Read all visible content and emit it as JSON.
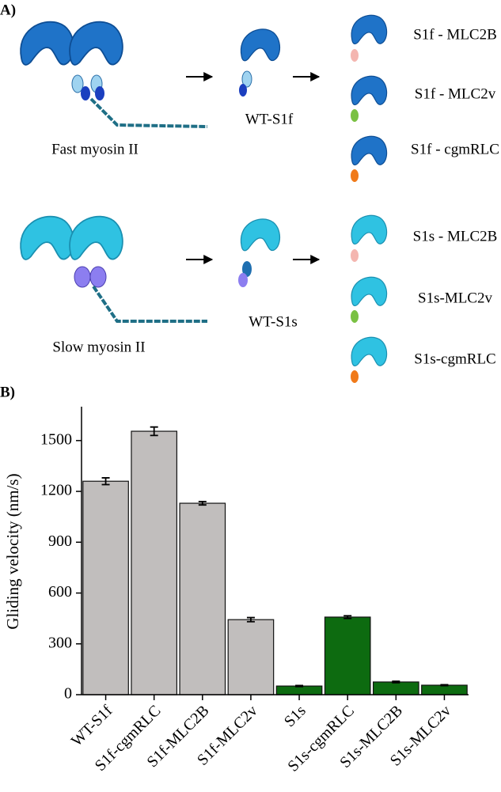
{
  "panel_a": {
    "label": "A)",
    "fast": {
      "name": "Fast myosin II",
      "s1": "WT-S1f",
      "variants": [
        "S1f - MLC2B",
        "S1f - MLC2v",
        "S1f - cgmRLC"
      ]
    },
    "slow": {
      "name": "Slow myosin II",
      "s1": "WT-S1s",
      "variants": [
        "S1s - MLC2B",
        "S1s-MLC2v",
        "S1s-cgmRLC"
      ]
    }
  },
  "chart_data": {
    "type": "bar",
    "label": "B)",
    "y_label": "Gliding velocity (nm/s)",
    "categories": [
      "WT-S1f",
      "S1f-cgmRLC",
      "S1f-MLC2B",
      "S1f-MLC2v",
      "S1s",
      "S1s-cgmRLC",
      "S1s-MLC2B",
      "S1s-MLC2v"
    ],
    "values": [
      1260,
      1555,
      1130,
      443,
      51,
      458,
      75,
      56
    ],
    "errors": [
      20,
      25,
      10,
      12,
      3,
      8,
      4,
      3
    ],
    "colors": [
      "#c1bebd",
      "#c1bebd",
      "#c1bebd",
      "#c1bebd",
      "#0d6b10",
      "#0d6b10",
      "#0d6b10",
      "#0d6b10"
    ],
    "ylim": [
      0,
      1700
    ],
    "yticks": [
      0,
      300,
      600,
      900,
      1200,
      1500
    ]
  }
}
